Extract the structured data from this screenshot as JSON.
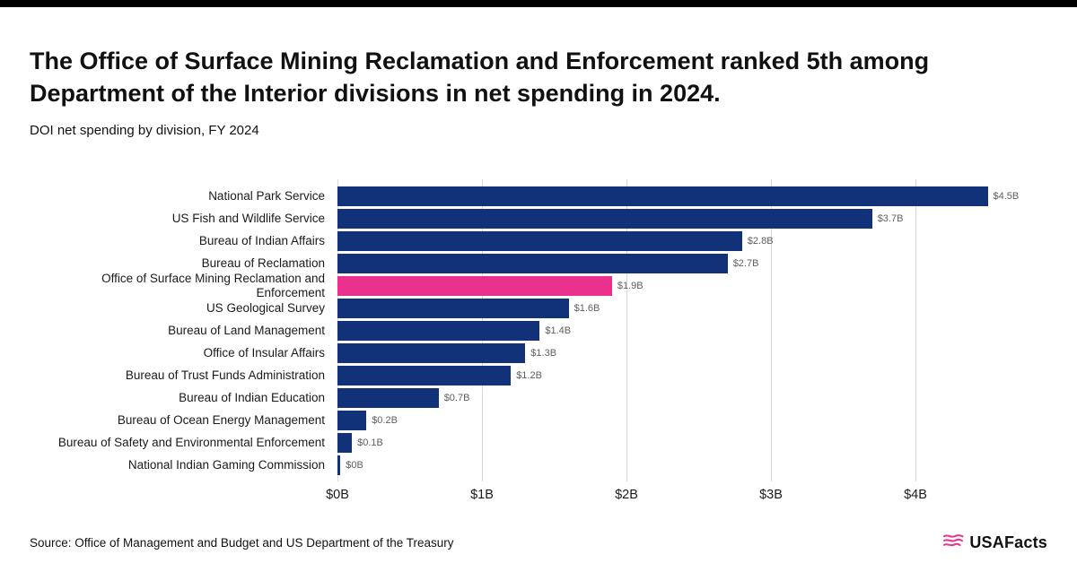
{
  "header": {
    "title": "The Office of Surface Mining Reclamation and Enforcement ranked 5th among Department of the Interior divisions in net spending in 2024.",
    "subtitle": "DOI net spending by division, FY 2024"
  },
  "footer": {
    "source": "Source: Office of Management and Budget and US Department of the Treasury",
    "brand": "USAFacts"
  },
  "chart_data": {
    "type": "bar",
    "orientation": "horizontal",
    "title": "DOI net spending by division, FY 2024",
    "unit": "billions of USD",
    "xlim": [
      0,
      4.5
    ],
    "x_tick_values": [
      0,
      1,
      2,
      3,
      4
    ],
    "x_tick_labels": [
      "$0B",
      "$1B",
      "$2B",
      "$3B",
      "$4B"
    ],
    "grid": true,
    "bar_color": "#113278",
    "highlight_color": "#e9308c",
    "highlight_index": 4,
    "categories": [
      "National Park Service",
      "US Fish and Wildlife Service",
      "Bureau of Indian Affairs",
      "Bureau of Reclamation",
      "Office of Surface Mining Reclamation and Enforcement",
      "US Geological Survey",
      "Bureau of Land Management",
      "Office of Insular Affairs",
      "Bureau of Trust Funds Administration",
      "Bureau of Indian Education",
      "Bureau of Ocean Energy Management",
      "Bureau of Safety and Environmental Enforcement",
      "National Indian Gaming Commission"
    ],
    "values": [
      4.5,
      3.7,
      2.8,
      2.7,
      1.9,
      1.6,
      1.4,
      1.3,
      1.2,
      0.7,
      0.2,
      0.1,
      0.02
    ],
    "value_labels": [
      "$4.5B",
      "$3.7B",
      "$2.8B",
      "$2.7B",
      "$1.9B",
      "$1.6B",
      "$1.4B",
      "$1.3B",
      "$1.2B",
      "$0.7B",
      "$0.2B",
      "$0.1B",
      "$0B"
    ]
  }
}
